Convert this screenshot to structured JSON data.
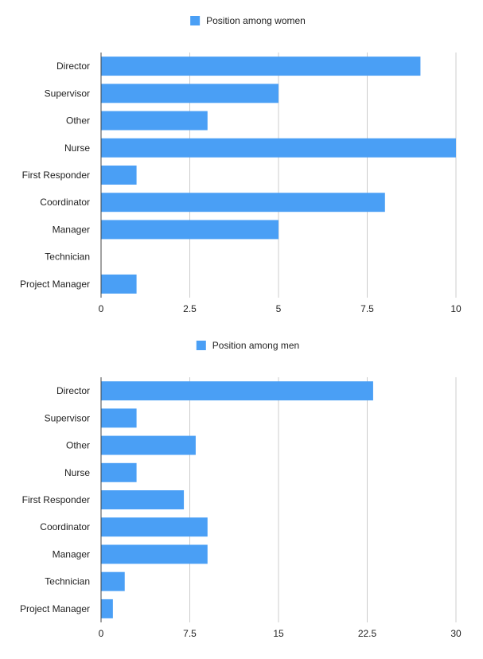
{
  "chart_data": [
    {
      "type": "bar",
      "orientation": "horizontal",
      "categories": [
        "Director",
        "Supervisor",
        "Other",
        "Nurse",
        "First Responder",
        "Coordinator",
        "Manager",
        "Technician",
        "Project Manager"
      ],
      "series": [
        {
          "name": "Position among women",
          "values": [
            9,
            5,
            3,
            10,
            1,
            8,
            5,
            0,
            1
          ]
        }
      ],
      "xlim": [
        0,
        10
      ],
      "xticks": [
        "0",
        "2.5",
        "5",
        "7.5",
        "10"
      ],
      "xtick_values": [
        0,
        2.5,
        5,
        7.5,
        10
      ],
      "grid": true,
      "legend_position": "top-center",
      "bar_color": "#4a9ff5"
    },
    {
      "type": "bar",
      "orientation": "horizontal",
      "categories": [
        "Director",
        "Supervisor",
        "Other",
        "Nurse",
        "First Responder",
        "Coordinator",
        "Manager",
        "Technician",
        "Project Manager"
      ],
      "series": [
        {
          "name": "Position among men",
          "values": [
            23,
            3,
            8,
            3,
            7,
            9,
            9,
            2,
            1
          ]
        }
      ],
      "xlim": [
        0,
        30
      ],
      "xticks": [
        "0",
        "7.5",
        "15",
        "22.5",
        "30"
      ],
      "xtick_values": [
        0,
        7.5,
        15,
        22.5,
        30
      ],
      "grid": true,
      "legend_position": "top-center",
      "bar_color": "#4a9ff5"
    }
  ]
}
